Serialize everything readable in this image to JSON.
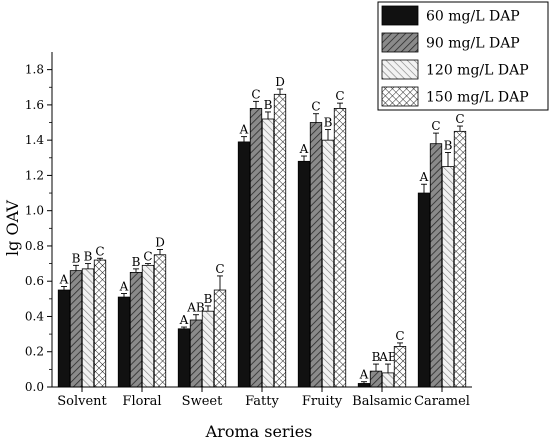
{
  "chart_data": {
    "type": "bar",
    "title": "",
    "xlabel": "Aroma series",
    "ylabel": "lg OAV",
    "ylim": [
      0,
      1.9
    ],
    "yticks": [
      "0.0",
      "0.2",
      "0.4",
      "0.6",
      "0.8",
      "1.0",
      "1.2",
      "1.4",
      "1.6",
      "1.8"
    ],
    "categories": [
      "Solvent",
      "Floral",
      "Sweet",
      "Fatty",
      "Fruity",
      "Balsamic",
      "Caramel"
    ],
    "legend_position": "top-right",
    "grid": false,
    "series": [
      {
        "name": "60 mg/L DAP",
        "pattern": "solid-black",
        "values": [
          0.55,
          0.51,
          0.33,
          1.39,
          1.28,
          0.02,
          1.1
        ],
        "errors": [
          0.02,
          0.02,
          0.01,
          0.03,
          0.03,
          0.01,
          0.05
        ],
        "labels": [
          "A",
          "A",
          "A",
          "A",
          "A",
          "A",
          "A"
        ]
      },
      {
        "name": "90 mg/L DAP",
        "pattern": "gray-diagonal",
        "values": [
          0.66,
          0.65,
          0.38,
          1.58,
          1.5,
          0.09,
          1.38
        ],
        "errors": [
          0.03,
          0.02,
          0.03,
          0.04,
          0.05,
          0.04,
          0.06
        ],
        "labels": [
          "B",
          "B",
          "AB",
          "C",
          "C",
          "B",
          "C"
        ]
      },
      {
        "name": "120 mg/L DAP",
        "pattern": "light-backdiagonal",
        "values": [
          0.67,
          0.69,
          0.43,
          1.52,
          1.4,
          0.08,
          1.25
        ],
        "errors": [
          0.03,
          0.01,
          0.03,
          0.04,
          0.06,
          0.05,
          0.08
        ],
        "labels": [
          "B",
          "C",
          "B",
          "B",
          "B",
          "AB",
          "B"
        ]
      },
      {
        "name": "150 mg/L DAP",
        "pattern": "crosshatch",
        "values": [
          0.72,
          0.75,
          0.55,
          1.66,
          1.58,
          0.23,
          1.45
        ],
        "errors": [
          0.01,
          0.03,
          0.08,
          0.03,
          0.03,
          0.02,
          0.03
        ],
        "labels": [
          "C",
          "D",
          "C",
          "D",
          "C",
          "C",
          "C"
        ]
      }
    ]
  }
}
